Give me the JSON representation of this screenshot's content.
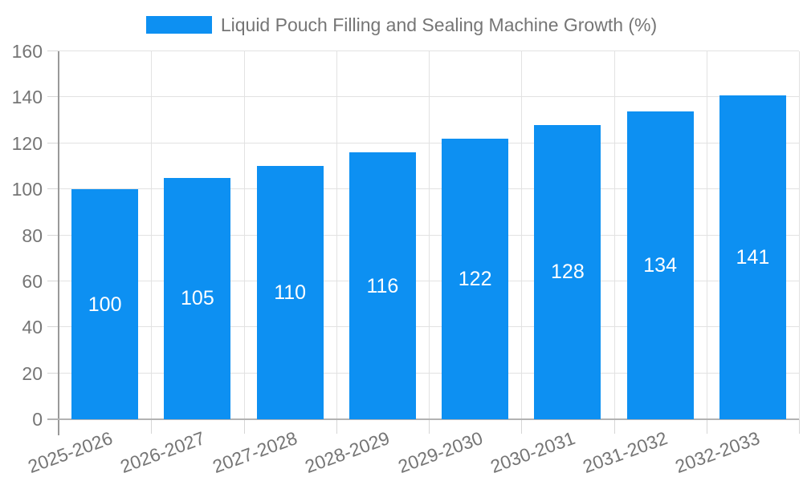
{
  "legend": {
    "position": "top"
  },
  "chart_data": {
    "type": "bar",
    "title": "Liquid Pouch Filling and Sealing Machine Growth (%)",
    "categories": [
      "2025-2026",
      "2026-2027",
      "2027-2028",
      "2028-2029",
      "2029-2030",
      "2030-2031",
      "2031-2032",
      "2032-2033"
    ],
    "values": [
      100,
      105,
      110,
      116,
      122,
      128,
      134,
      141
    ],
    "xlabel": "",
    "ylabel": "",
    "ylim": [
      0,
      160
    ],
    "yticks": [
      0,
      20,
      40,
      60,
      80,
      100,
      120,
      140,
      160
    ],
    "grid": true,
    "legend_position": "top",
    "x_label_rotation_deg": -20,
    "bar_color": "#0d90f2",
    "value_label_color": "#ffffff"
  },
  "colors": {
    "background": "#ffffff",
    "grid_line": "#e2e2e2",
    "tick_line": "#d6d6d6",
    "y_axis_line": "#999999",
    "x_axis_line": "#b3b3b3",
    "tick_text": "#757575",
    "legend_text": "#757575"
  }
}
